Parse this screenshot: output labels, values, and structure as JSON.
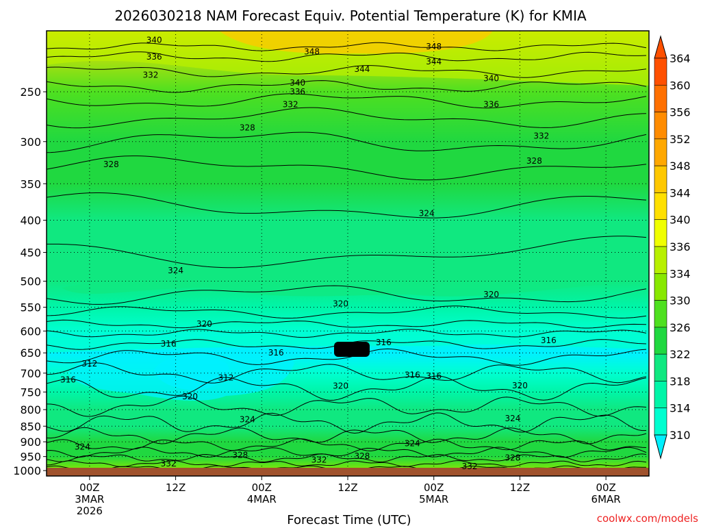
{
  "title": "2026030218 NAM Forecast Equiv. Potential Temperature (K) for KMIA",
  "credit": "coolwx.com/models",
  "chart_data": {
    "type": "heatmap",
    "title": "2026030218 NAM Forecast Equiv. Potential Temperature (K) for KMIA",
    "xlabel": "Forecast Time (UTC)",
    "ylabel": "",
    "y_ticks": [
      250,
      300,
      350,
      400,
      450,
      500,
      550,
      600,
      650,
      700,
      750,
      800,
      850,
      900,
      950,
      1000
    ],
    "y_range": [
      200,
      1020
    ],
    "y_scale": "log",
    "x_ticks": [
      {
        "t": 6,
        "lines": [
          "00Z",
          "3MAR",
          "2026"
        ]
      },
      {
        "t": 18,
        "lines": [
          "12Z"
        ]
      },
      {
        "t": 30,
        "lines": [
          "00Z",
          "4MAR"
        ]
      },
      {
        "t": 42,
        "lines": [
          "12Z"
        ]
      },
      {
        "t": 54,
        "lines": [
          "00Z",
          "5MAR"
        ]
      },
      {
        "t": 66,
        "lines": [
          "12Z"
        ]
      },
      {
        "t": 78,
        "lines": [
          "00Z",
          "6MAR"
        ]
      }
    ],
    "x_range": [
      0,
      84
    ],
    "colorbar": {
      "ticks": [
        310,
        314,
        318,
        322,
        326,
        330,
        334,
        336,
        340,
        344,
        348,
        352,
        356,
        360,
        364
      ],
      "colors": [
        "#00f0ff",
        "#00ffd0",
        "#00f5a8",
        "#10e880",
        "#20d840",
        "#4ee020",
        "#88e800",
        "#b8f000",
        "#f0ff00",
        "#ffe000",
        "#ffc800",
        "#ffa800",
        "#ff8c00",
        "#ff7000",
        "#ff5000"
      ]
    },
    "profile": {
      "levels": [
        1000,
        950,
        900,
        850,
        800,
        750,
        700,
        650,
        600,
        550,
        500,
        450,
        400,
        350,
        300,
        250,
        200
      ],
      "values": [
        334,
        329,
        327,
        325,
        323,
        320,
        314,
        313,
        317,
        320,
        322,
        324,
        325,
        326,
        328,
        333,
        346
      ]
    },
    "contour_labels": [
      {
        "t": 15,
        "p": 207,
        "v": "340"
      },
      {
        "t": 15,
        "p": 220,
        "v": "336"
      },
      {
        "t": 14.5,
        "p": 235,
        "v": "332"
      },
      {
        "t": 37,
        "p": 216,
        "v": "348"
      },
      {
        "t": 44,
        "p": 230,
        "v": "344"
      },
      {
        "t": 35,
        "p": 242,
        "v": "340"
      },
      {
        "t": 35,
        "p": 250,
        "v": "336"
      },
      {
        "t": 34,
        "p": 262,
        "v": "332"
      },
      {
        "t": 54,
        "p": 212,
        "v": "348"
      },
      {
        "t": 54,
        "p": 224,
        "v": "344"
      },
      {
        "t": 62,
        "p": 238,
        "v": "340"
      },
      {
        "t": 62,
        "p": 262,
        "v": "336"
      },
      {
        "t": 69,
        "p": 294,
        "v": "332"
      },
      {
        "t": 68,
        "p": 322,
        "v": "328"
      },
      {
        "t": 28,
        "p": 285,
        "v": "328"
      },
      {
        "t": 9,
        "p": 326,
        "v": "328"
      },
      {
        "t": 53,
        "p": 390,
        "v": "324"
      },
      {
        "t": 18,
        "p": 481,
        "v": "324"
      },
      {
        "t": 41,
        "p": 543,
        "v": "320"
      },
      {
        "t": 62,
        "p": 525,
        "v": "320"
      },
      {
        "t": 22,
        "p": 585,
        "v": "320"
      },
      {
        "t": 17,
        "p": 629,
        "v": "316"
      },
      {
        "t": 47,
        "p": 626,
        "v": "316"
      },
      {
        "t": 70,
        "p": 621,
        "v": "316"
      },
      {
        "t": 6,
        "p": 676,
        "v": "312"
      },
      {
        "t": 3,
        "p": 717,
        "v": "316"
      },
      {
        "t": 32,
        "p": 650,
        "v": "316"
      },
      {
        "t": 25,
        "p": 712,
        "v": "312"
      },
      {
        "t": 20,
        "p": 763,
        "v": "320"
      },
      {
        "t": 41,
        "p": 734,
        "v": "320"
      },
      {
        "t": 51,
        "p": 705,
        "v": "316"
      },
      {
        "t": 54,
        "p": 707,
        "v": "316"
      },
      {
        "t": 28,
        "p": 829,
        "v": "324"
      },
      {
        "t": 65,
        "p": 826,
        "v": "324"
      },
      {
        "t": 66,
        "p": 733,
        "v": "320"
      },
      {
        "t": 51,
        "p": 905,
        "v": "324"
      },
      {
        "t": 5,
        "p": 917,
        "v": "324"
      },
      {
        "t": 27,
        "p": 945,
        "v": "328"
      },
      {
        "t": 44,
        "p": 948,
        "v": "328"
      },
      {
        "t": 65,
        "p": 955,
        "v": "328"
      },
      {
        "t": 17,
        "p": 975,
        "v": "332"
      },
      {
        "t": 38,
        "p": 962,
        "v": "332"
      },
      {
        "t": 59,
        "p": 985,
        "v": "332"
      }
    ]
  }
}
